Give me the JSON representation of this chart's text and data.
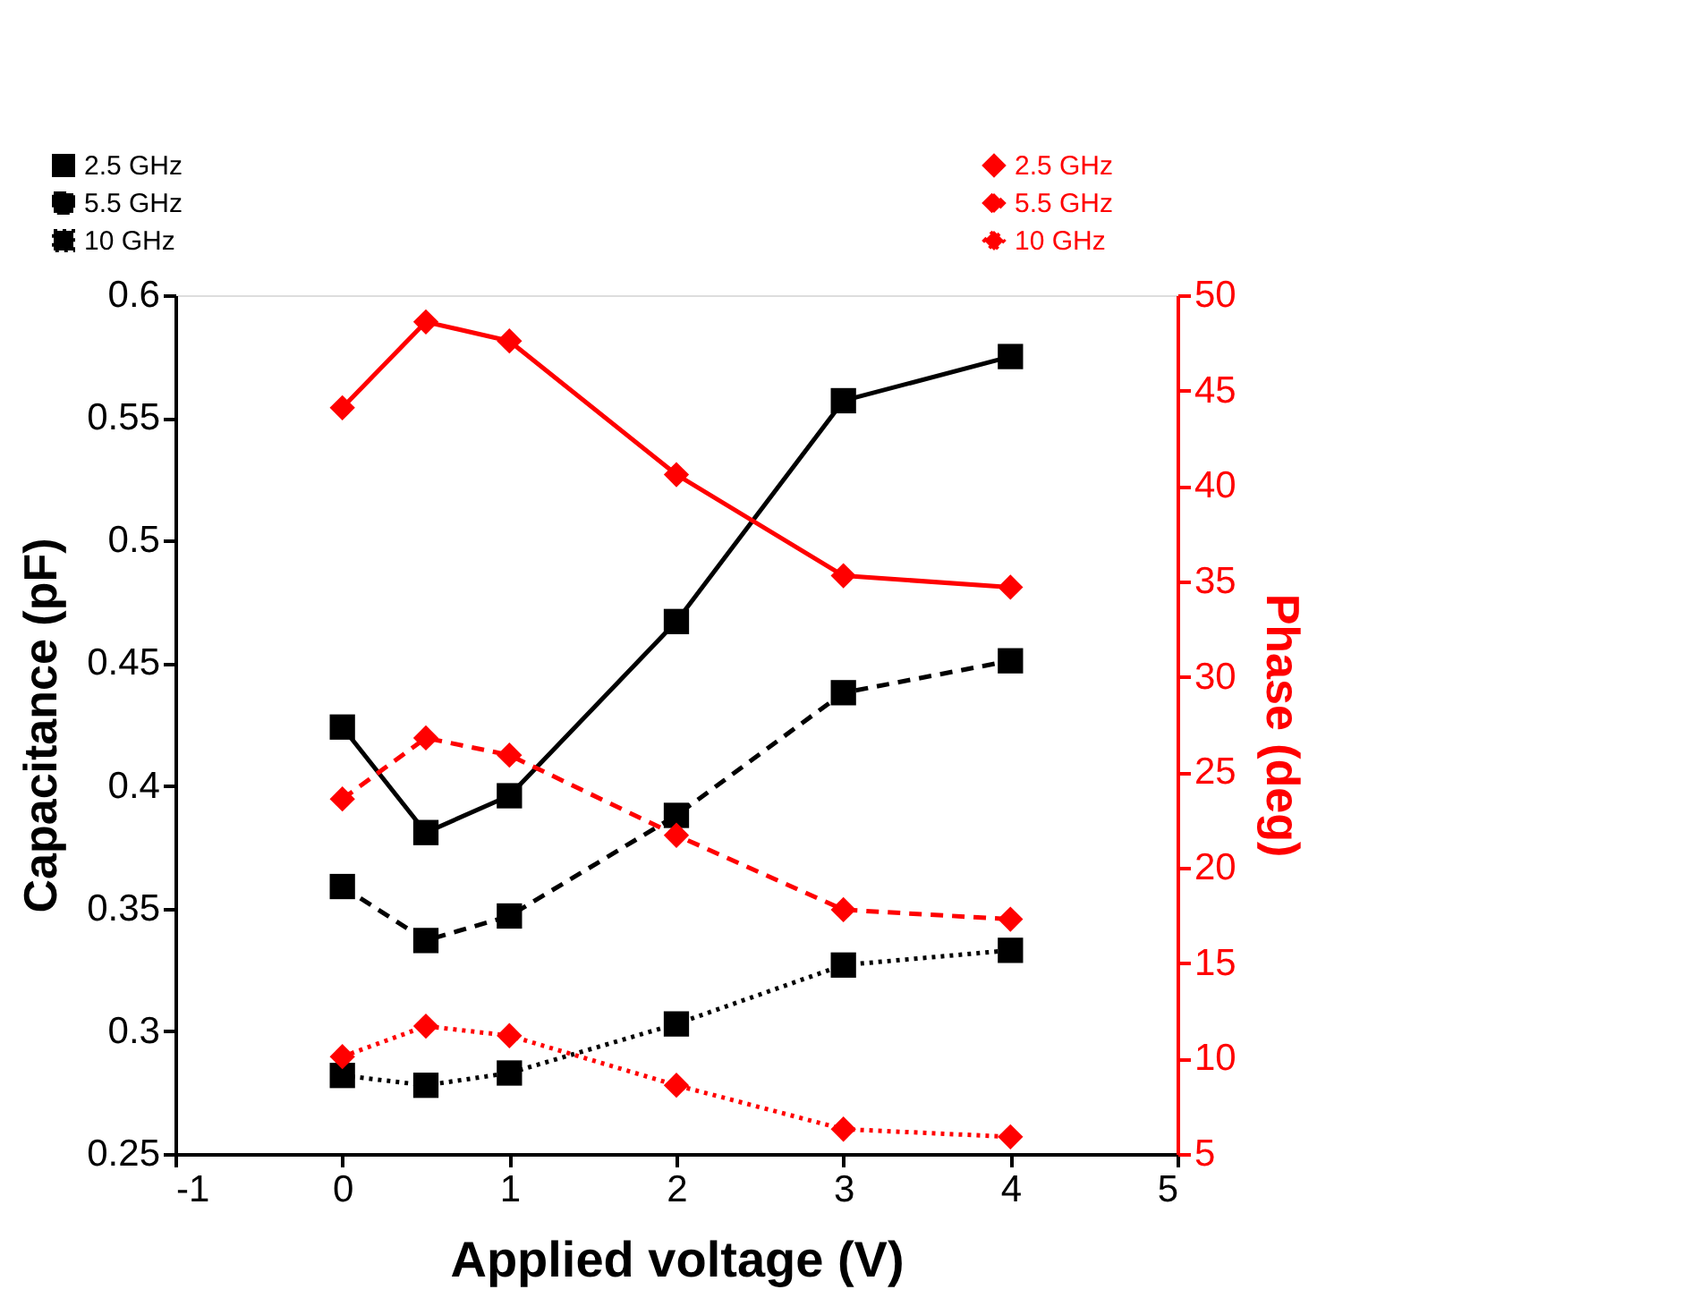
{
  "chart_data": {
    "type": "line",
    "xlabel": "Applied voltage (V)",
    "ylabel": "Capacitance (pF)",
    "y2label": "Phase (deg)",
    "x": [
      0,
      0.5,
      1,
      2,
      3,
      4
    ],
    "xlim": [
      -1,
      5
    ],
    "xticks": [
      -1,
      0,
      1,
      2,
      3,
      4,
      5
    ],
    "ylim": [
      0.25,
      0.6
    ],
    "yticks": [
      0.25,
      0.3,
      0.35,
      0.4,
      0.45,
      0.5,
      0.55,
      0.6
    ],
    "y2lim": [
      5,
      50
    ],
    "y2ticks": [
      5,
      10,
      15,
      20,
      25,
      30,
      35,
      40,
      45,
      50
    ],
    "grid": false,
    "legend": "top",
    "series": [
      {
        "name": "2.5 GHz",
        "color": "#000000",
        "marker": "square",
        "line_style": "solid",
        "values": [
          0.424,
          0.381,
          0.396,
          0.467,
          0.557,
          0.575
        ]
      },
      {
        "name": "5.5 GHz",
        "color": "#000000",
        "marker": "square",
        "line_style": "dashed",
        "values": [
          0.359,
          0.337,
          0.347,
          0.388,
          0.438,
          0.451
        ]
      },
      {
        "name": "10 GHz",
        "color": "#000000",
        "marker": "square",
        "line_style": "dotted",
        "values": [
          0.282,
          0.278,
          0.283,
          0.303,
          0.327,
          0.333
        ]
      },
      {
        "name": "2.5 GHz",
        "color": "#ff0000",
        "marker": "diamond",
        "line_style": "solid",
        "axis": "y2",
        "values": [
          44.1,
          48.6,
          47.6,
          40.6,
          35.3,
          34.7
        ]
      },
      {
        "name": "5.5 GHz",
        "color": "#ff0000",
        "marker": "diamond",
        "line_style": "dashed",
        "axis": "y2",
        "values": [
          23.6,
          26.8,
          25.9,
          21.7,
          17.8,
          17.3
        ]
      },
      {
        "name": "10 GHz",
        "color": "#ff0000",
        "marker": "diamond",
        "line_style": "dotted",
        "axis": "y2",
        "values": [
          10.1,
          11.7,
          11.2,
          8.6,
          6.3,
          5.9
        ]
      }
    ]
  }
}
